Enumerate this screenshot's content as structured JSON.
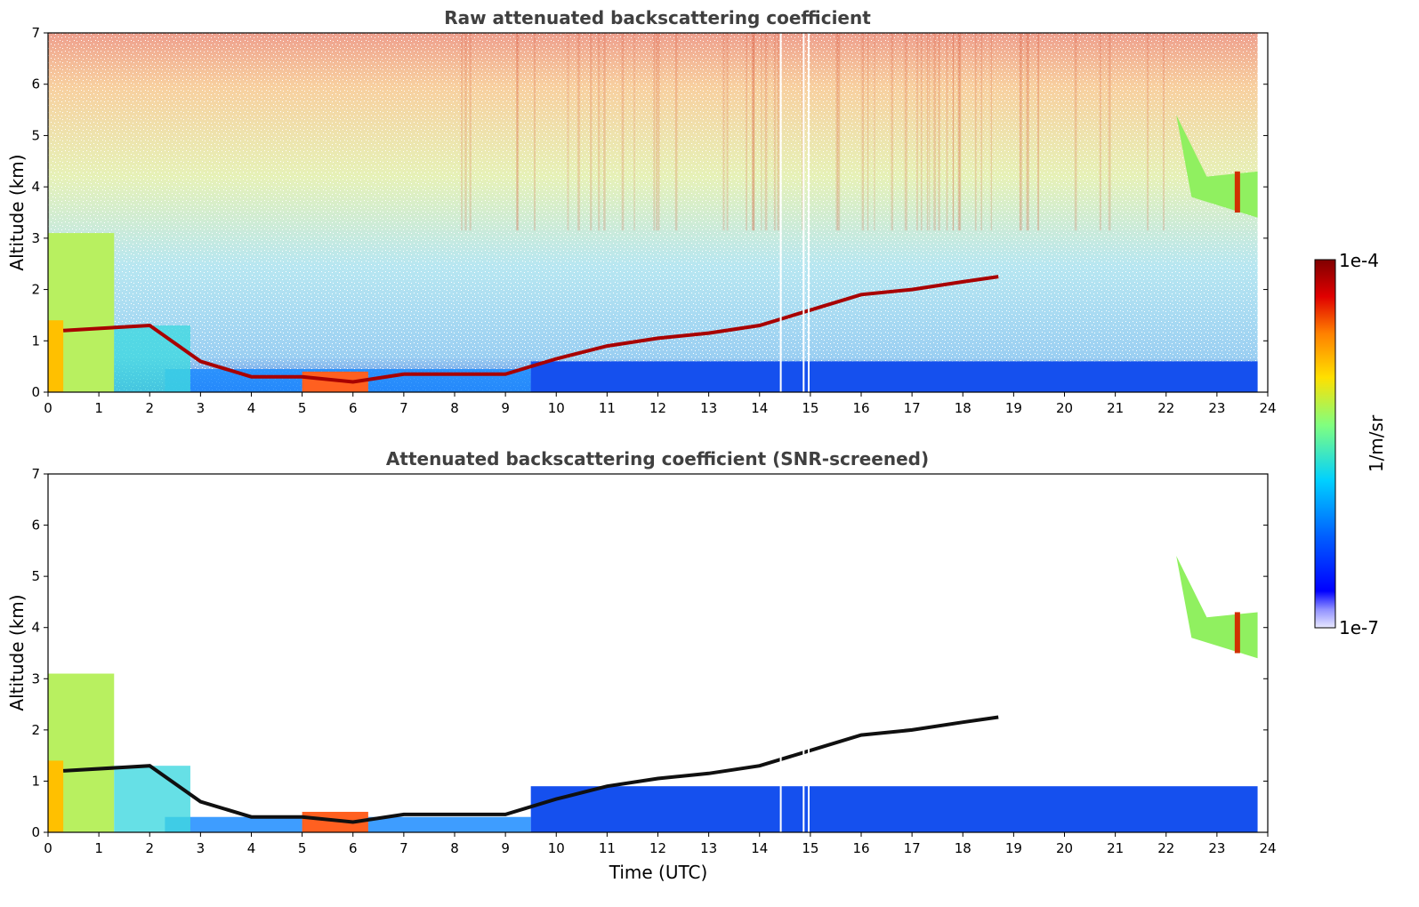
{
  "chart_data": [
    {
      "type": "heatmap",
      "title": "Raw attenuated backscattering coefficient",
      "ylabel": "Altitude (km)",
      "xlabel": "",
      "xlim": [
        0,
        24
      ],
      "ylim": [
        0,
        7
      ],
      "x_ticks": [
        "0",
        "1",
        "2",
        "3",
        "4",
        "5",
        "6",
        "7",
        "8",
        "9",
        "10",
        "11",
        "12",
        "13",
        "14",
        "15",
        "16",
        "17",
        "18",
        "19",
        "20",
        "21",
        "22",
        "23",
        "24"
      ],
      "y_ticks": [
        "0",
        "1",
        "2",
        "3",
        "4",
        "5",
        "6",
        "7"
      ],
      "features": {
        "boundary_layer_top": {
          "x": [
            0.3,
            2.0,
            3.0,
            4.0,
            5.0,
            6.0,
            7.0,
            8.0,
            9.0,
            10.0,
            11.0,
            12.0,
            13.0,
            14.0,
            15.0,
            16.0,
            17.0,
            18.0,
            18.7
          ],
          "y": [
            1.2,
            1.3,
            0.6,
            0.3,
            0.3,
            0.2,
            0.35,
            0.35,
            0.35,
            0.65,
            0.9,
            1.05,
            1.15,
            1.3,
            1.6,
            1.9,
            2.0,
            2.15,
            2.25
          ]
        },
        "high_cloud": {
          "x": [
            22.2,
            23.8
          ],
          "y_base": 3.4,
          "y_top": 5.4
        }
      }
    },
    {
      "type": "heatmap",
      "title": "Attenuated backscattering coefficient (SNR-screened)",
      "ylabel": "Altitude (km)",
      "xlabel": "Time (UTC)",
      "xlim": [
        0,
        24
      ],
      "ylim": [
        0,
        7
      ],
      "x_ticks": [
        "0",
        "1",
        "2",
        "3",
        "4",
        "5",
        "6",
        "7",
        "8",
        "9",
        "10",
        "11",
        "12",
        "13",
        "14",
        "15",
        "16",
        "17",
        "18",
        "19",
        "20",
        "21",
        "22",
        "23",
        "24"
      ],
      "y_ticks": [
        "0",
        "1",
        "2",
        "3",
        "4",
        "5",
        "6",
        "7"
      ]
    }
  ],
  "colorbar": {
    "label": "1/m/sr",
    "max_label": "1e-4",
    "min_label": "1e-7",
    "colors": [
      "#e8e8ff",
      "#c8c8ff",
      "#9090ff",
      "#0000ff",
      "#0050ff",
      "#00a0ff",
      "#00e0ff",
      "#60ffa0",
      "#c0ff40",
      "#ffe000",
      "#ffa000",
      "#ff4000",
      "#c00000",
      "#800000"
    ]
  }
}
